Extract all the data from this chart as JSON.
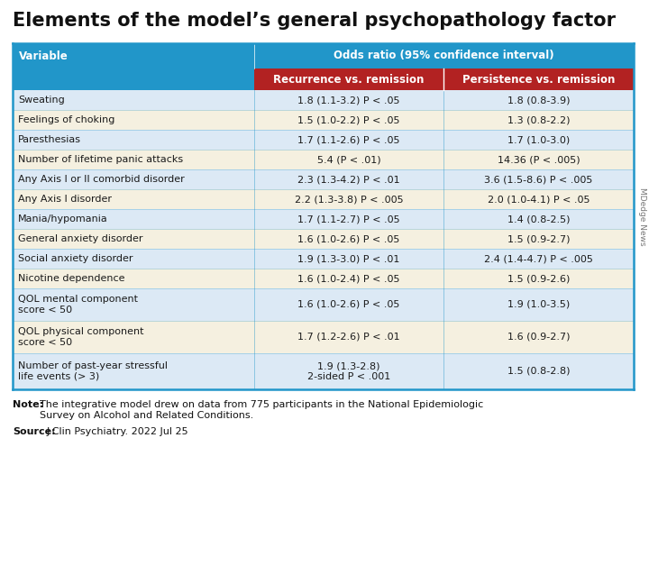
{
  "title": "Elements of the model’s general psychopathology factor",
  "header_main": "Odds ratio (95% confidence interval)",
  "header_col1": "Variable",
  "header_col2": "Recurrence vs. remission",
  "header_col3": "Persistence vs. remission",
  "rows": [
    [
      "Sweating",
      "1.8 (1.1-3.2) P < .05",
      "1.8 (0.8-3.9)"
    ],
    [
      "Feelings of choking",
      "1.5 (1.0-2.2) P < .05",
      "1.3 (0.8-2.2)"
    ],
    [
      "Paresthesias",
      "1.7 (1.1-2.6) P < .05",
      "1.7 (1.0-3.0)"
    ],
    [
      "Number of lifetime panic attacks",
      "5.4 (P < .01)",
      "14.36 (P < .005)"
    ],
    [
      "Any Axis I or II comorbid disorder",
      "2.3 (1.3-4.2) P < .01",
      "3.6 (1.5-8.6) P < .005"
    ],
    [
      "Any Axis I disorder",
      "2.2 (1.3-3.8) P < .005",
      "2.0 (1.0-4.1) P < .05"
    ],
    [
      "Mania/hypomania",
      "1.7 (1.1-2.7) P < .05",
      "1.4 (0.8-2.5)"
    ],
    [
      "General anxiety disorder",
      "1.6 (1.0-2.6) P < .05",
      "1.5 (0.9-2.7)"
    ],
    [
      "Social anxiety disorder",
      "1.9 (1.3-3.0) P < .01",
      "2.4 (1.4-4.7) P < .005"
    ],
    [
      "Nicotine dependence",
      "1.6 (1.0-2.4) P < .05",
      "1.5 (0.9-2.6)"
    ],
    [
      "QOL mental component\nscore < 50",
      "1.6 (1.0-2.6) P < .05",
      "1.9 (1.0-3.5)"
    ],
    [
      "QOL physical component\nscore < 50",
      "1.7 (1.2-2.6) P < .01",
      "1.6 (0.9-2.7)"
    ],
    [
      "Number of past-year stressful\nlife events (> 3)",
      "1.9 (1.3-2.8)\n2-sided P < .001",
      "1.5 (0.8-2.8)"
    ]
  ],
  "note_label": "Note:",
  "note_text": "The integrative model drew on data from 775 participants in the National Epidemiologic\nSurvey on Alcohol and Related Conditions.",
  "source_label": "Source:",
  "source_text": "J Clin Psychiatry. 2022 Jul 25",
  "watermark": "MDedge News",
  "color_header_blue": "#2196C9",
  "color_header_red": "#B22222",
  "color_row_light": "#dce9f5",
  "color_row_beige": "#f5f0e0",
  "color_border": "#2196C9",
  "bg_color": "#ffffff",
  "title_fontsize": 15,
  "header_fontsize": 8.5,
  "cell_fontsize": 8,
  "note_fontsize": 8
}
